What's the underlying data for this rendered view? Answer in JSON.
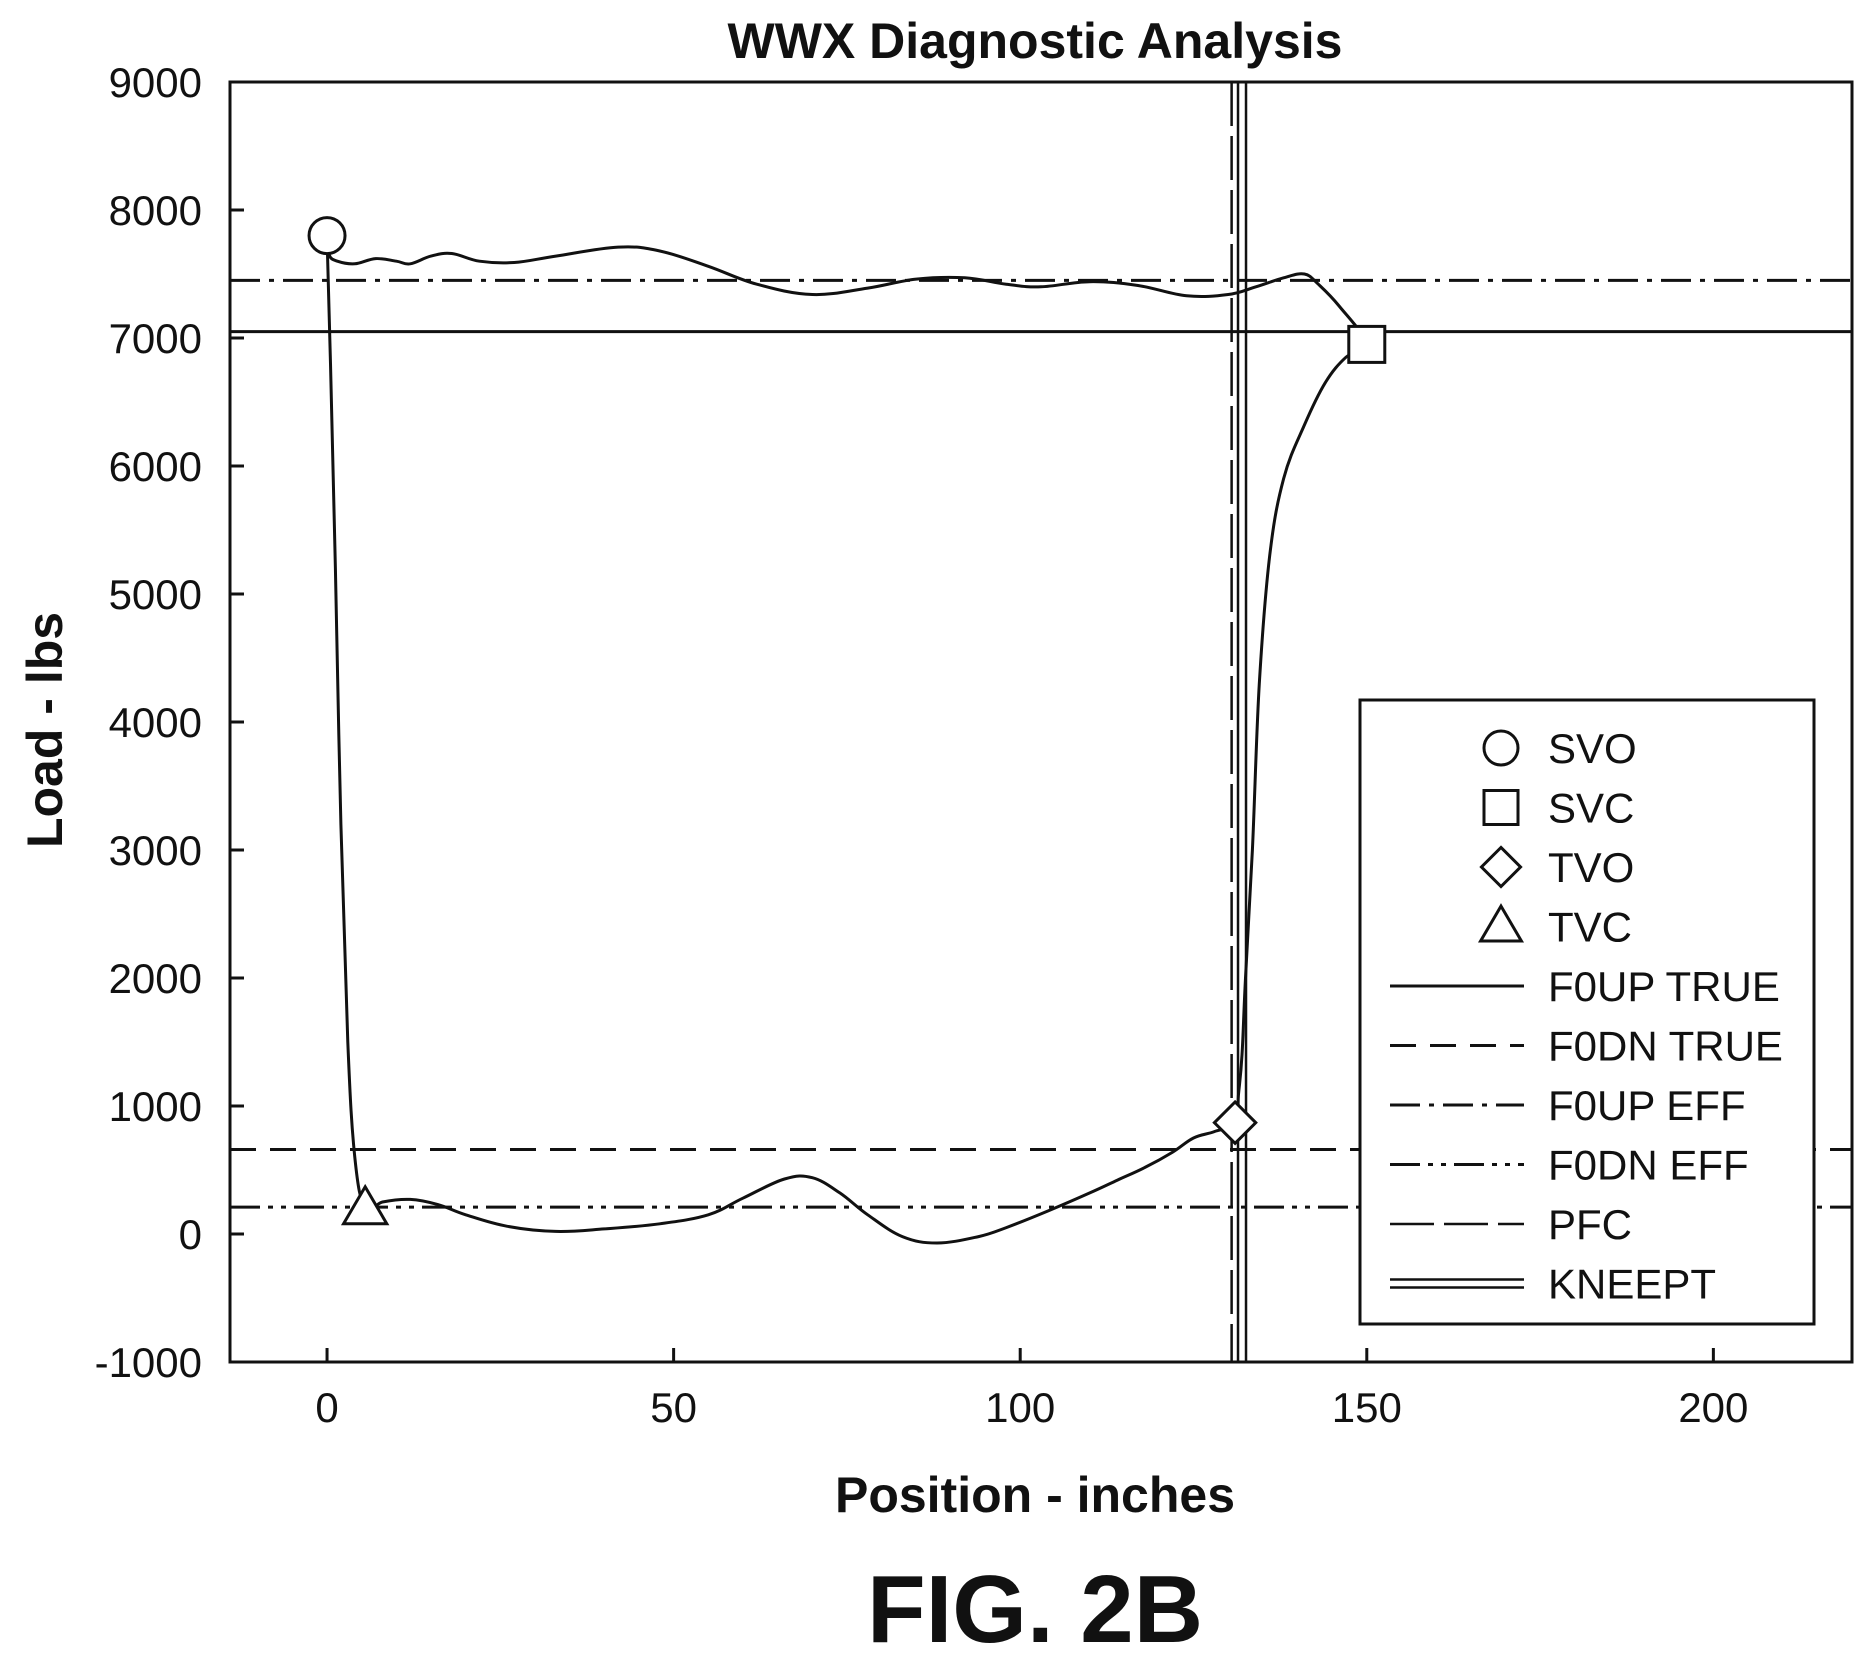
{
  "figure_label": "FIG. 2B",
  "chart_data": {
    "type": "line",
    "title": "WWX Diagnostic Analysis",
    "xlabel": "Position - inches",
    "ylabel": "Load - lbs",
    "xlim": [
      -14,
      220
    ],
    "ylim": [
      -1000,
      9000
    ],
    "xticks": [
      0,
      50,
      100,
      150,
      200
    ],
    "yticks": [
      -1000,
      0,
      1000,
      2000,
      3000,
      4000,
      5000,
      6000,
      7000,
      8000,
      9000
    ],
    "grid": false,
    "legend_position": "lower-right",
    "card": [
      [
        0,
        7800
      ],
      [
        0.3,
        7650
      ],
      [
        1.5,
        7600
      ],
      [
        4,
        7580
      ],
      [
        7,
        7620
      ],
      [
        10,
        7600
      ],
      [
        12,
        7580
      ],
      [
        15,
        7640
      ],
      [
        18,
        7660
      ],
      [
        22,
        7600
      ],
      [
        27,
        7590
      ],
      [
        33,
        7640
      ],
      [
        42,
        7710
      ],
      [
        48,
        7680
      ],
      [
        55,
        7560
      ],
      [
        62,
        7420
      ],
      [
        70,
        7340
      ],
      [
        78,
        7390
      ],
      [
        85,
        7460
      ],
      [
        92,
        7470
      ],
      [
        98,
        7420
      ],
      [
        103,
        7400
      ],
      [
        110,
        7440
      ],
      [
        117,
        7410
      ],
      [
        124,
        7330
      ],
      [
        130,
        7340
      ],
      [
        134,
        7400
      ],
      [
        138,
        7470
      ],
      [
        141,
        7500
      ],
      [
        143,
        7420
      ],
      [
        146,
        7250
      ],
      [
        150,
        6950
      ],
      [
        147,
        6850
      ],
      [
        144,
        6650
      ],
      [
        141,
        6320
      ],
      [
        138,
        5900
      ],
      [
        136,
        5300
      ],
      [
        134.5,
        4300
      ],
      [
        133.5,
        3000
      ],
      [
        132.5,
        2000
      ],
      [
        132,
        1400
      ],
      [
        131.5,
        1100
      ],
      [
        131,
        870
      ],
      [
        128,
        800
      ],
      [
        125,
        750
      ],
      [
        122,
        640
      ],
      [
        118,
        520
      ],
      [
        114,
        420
      ],
      [
        110,
        320
      ],
      [
        104,
        180
      ],
      [
        98,
        50
      ],
      [
        94,
        -20
      ],
      [
        88,
        -70
      ],
      [
        83,
        -20
      ],
      [
        78,
        150
      ],
      [
        74,
        320
      ],
      [
        70,
        440
      ],
      [
        66,
        430
      ],
      [
        60,
        280
      ],
      [
        55,
        150
      ],
      [
        48,
        80
      ],
      [
        40,
        40
      ],
      [
        33,
        20
      ],
      [
        26,
        60
      ],
      [
        20,
        150
      ],
      [
        16,
        230
      ],
      [
        12,
        270
      ],
      [
        8,
        250
      ],
      [
        5.5,
        200
      ],
      [
        4,
        600
      ],
      [
        3,
        1500
      ],
      [
        2,
        3200
      ],
      [
        1.2,
        5200
      ],
      [
        0.5,
        6800
      ],
      [
        0,
        7800
      ]
    ],
    "markers": [
      {
        "name": "SVO",
        "shape": "circle",
        "x": 0,
        "y": 7800
      },
      {
        "name": "SVC",
        "shape": "square",
        "x": 150,
        "y": 6950
      },
      {
        "name": "TVO",
        "shape": "diamond",
        "x": 131,
        "y": 870
      },
      {
        "name": "TVC",
        "shape": "triangle",
        "x": 5.5,
        "y": 200
      }
    ],
    "reference_lines": [
      {
        "name": "F0UP TRUE",
        "orientation": "horizontal",
        "value": 7050,
        "style": "solid"
      },
      {
        "name": "F0DN TRUE",
        "orientation": "horizontal",
        "value": 660,
        "style": "dashed"
      },
      {
        "name": "F0UP EFF",
        "orientation": "horizontal",
        "value": 7450,
        "style": "dash-dot"
      },
      {
        "name": "F0DN EFF",
        "orientation": "horizontal",
        "value": 210,
        "style": "dash-dot-dot"
      },
      {
        "name": "PFC",
        "orientation": "vertical",
        "value": 130.5,
        "style": "long-dash"
      },
      {
        "name": "KNEEPT",
        "orientation": "vertical",
        "value": 132,
        "style": "double"
      }
    ],
    "legend": [
      "SVO",
      "SVC",
      "TVO",
      "TVC",
      "F0UP TRUE",
      "F0DN TRUE",
      "F0UP EFF",
      "F0DN EFF",
      "PFC",
      "KNEEPT"
    ]
  }
}
